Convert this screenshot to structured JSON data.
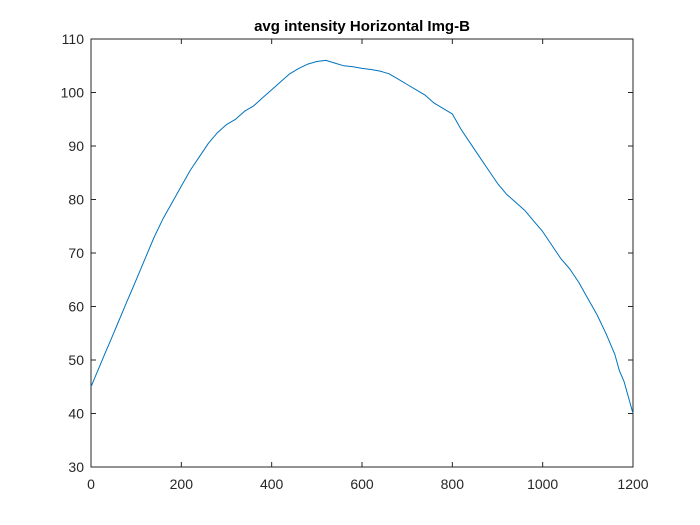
{
  "chart_data": {
    "type": "line",
    "title": "avg intensity Horizontal Img-B",
    "xlabel": "",
    "ylabel": "",
    "xlim": [
      0,
      1200
    ],
    "ylim": [
      30,
      110
    ],
    "xticks": [
      0,
      200,
      400,
      600,
      800,
      1000,
      1200
    ],
    "yticks": [
      30,
      40,
      50,
      60,
      70,
      80,
      90,
      100,
      110
    ],
    "xtick_labels": [
      "0",
      "200",
      "400",
      "600",
      "800",
      "1000",
      "1200"
    ],
    "ytick_labels": [
      "30",
      "40",
      "50",
      "60",
      "70",
      "80",
      "90",
      "100",
      "110"
    ],
    "grid": false,
    "series": [
      {
        "color": "#0072BD",
        "x": [
          0,
          10,
          20,
          30,
          40,
          50,
          60,
          70,
          80,
          90,
          100,
          120,
          140,
          160,
          180,
          200,
          220,
          240,
          260,
          280,
          300,
          320,
          340,
          360,
          380,
          400,
          420,
          440,
          460,
          480,
          500,
          520,
          540,
          560,
          580,
          600,
          620,
          640,
          660,
          680,
          700,
          720,
          740,
          760,
          780,
          800,
          820,
          840,
          860,
          880,
          900,
          920,
          940,
          960,
          980,
          1000,
          1020,
          1040,
          1060,
          1080,
          1100,
          1120,
          1140,
          1160,
          1170,
          1180,
          1190,
          1200
        ],
        "y": [
          45,
          47,
          49,
          51,
          53,
          55,
          57,
          59,
          61,
          63,
          65,
          69,
          73,
          76.5,
          79.5,
          82.5,
          85.5,
          88,
          90.5,
          92.5,
          94,
          95,
          96.5,
          97.5,
          99,
          100.5,
          102,
          103.5,
          104.5,
          105.3,
          105.8,
          106,
          105.5,
          105,
          104.8,
          104.5,
          104.3,
          104,
          103.5,
          102.5,
          101.5,
          100.5,
          99.5,
          98,
          97,
          96,
          93,
          90.5,
          88,
          85.5,
          83,
          81,
          79.5,
          78,
          76,
          74,
          71.5,
          69,
          67,
          64.5,
          61.5,
          58.5,
          55,
          51,
          48,
          46,
          43,
          40
        ]
      }
    ]
  }
}
